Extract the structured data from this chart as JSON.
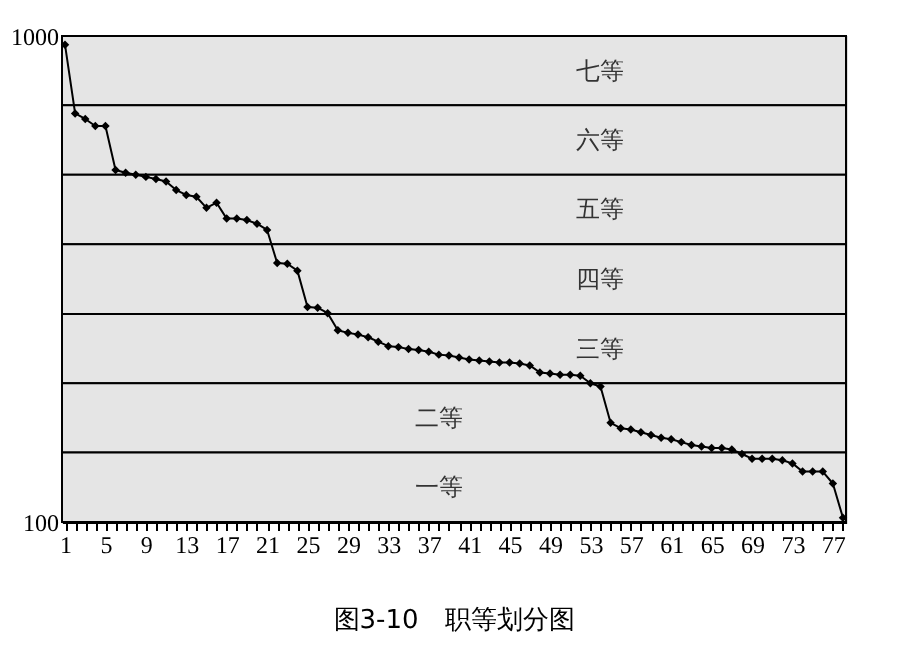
{
  "chart_data": {
    "type": "line",
    "categories": [
      "1",
      null,
      null,
      null,
      "5",
      null,
      null,
      null,
      "9",
      null,
      null,
      null,
      "13",
      null,
      null,
      null,
      "17",
      null,
      null,
      null,
      "21",
      null,
      null,
      null,
      "25",
      null,
      null,
      null,
      "29",
      null,
      null,
      null,
      "33",
      null,
      null,
      null,
      "37",
      null,
      null,
      null,
      "41",
      null,
      null,
      null,
      "45",
      null,
      null,
      null,
      "49",
      null,
      null,
      null,
      "53",
      null,
      null,
      null,
      "57",
      null,
      null,
      null,
      "61",
      null,
      null,
      null,
      "65",
      null,
      null,
      null,
      "69",
      null,
      null,
      null,
      "73",
      null,
      null,
      null,
      "77",
      null
    ],
    "series": [
      {
        "color": "#000000",
        "values": [
          959,
          693,
          675,
          653,
          653,
          530,
          523,
          518,
          513,
          508,
          502,
          482,
          471,
          467,
          443,
          454,
          421,
          421,
          418,
          411,
          399,
          341,
          340,
          329,
          277,
          276,
          269,
          248,
          245,
          243,
          240,
          235,
          230,
          229,
          227,
          226,
          224,
          221,
          220,
          218,
          216,
          215,
          214,
          213,
          213,
          212,
          210,
          203,
          202,
          201,
          201,
          200,
          193,
          190,
          160,
          156,
          155,
          153,
          151,
          149,
          148,
          146,
          144,
          143,
          142,
          142,
          141,
          138,
          135,
          135,
          135,
          134,
          132,
          127,
          127,
          127,
          120,
          102
        ]
      }
    ],
    "ylim": [
      100,
      1000
    ],
    "yticks": [
      100,
      1000
    ],
    "log": true,
    "marker": "diamond",
    "line_style": "solid",
    "bands": [
      {
        "axis": "y",
        "from": 720,
        "to": 1000,
        "label": "七等",
        "color": "#e5e5e5"
      },
      {
        "axis": "y",
        "from": 518,
        "to": 720,
        "label": "六等",
        "color": "#e5e5e5"
      },
      {
        "axis": "y",
        "from": 373,
        "to": 518,
        "label": "五等",
        "color": "#e5e5e5"
      },
      {
        "axis": "y",
        "from": 268,
        "to": 373,
        "label": "四等",
        "color": "#e5e5e5"
      },
      {
        "axis": "y",
        "from": 193,
        "to": 268,
        "label": "三等",
        "color": "#e5e5e5"
      },
      {
        "axis": "y",
        "from": 139,
        "to": 193,
        "label": "二等",
        "color": "#e5e5e5"
      },
      {
        "axis": "y",
        "from": 100,
        "to": 139,
        "label": "一等",
        "color": "#e5e5e5"
      }
    ],
    "annotations": [
      "图3-10　职等划分图"
    ]
  }
}
